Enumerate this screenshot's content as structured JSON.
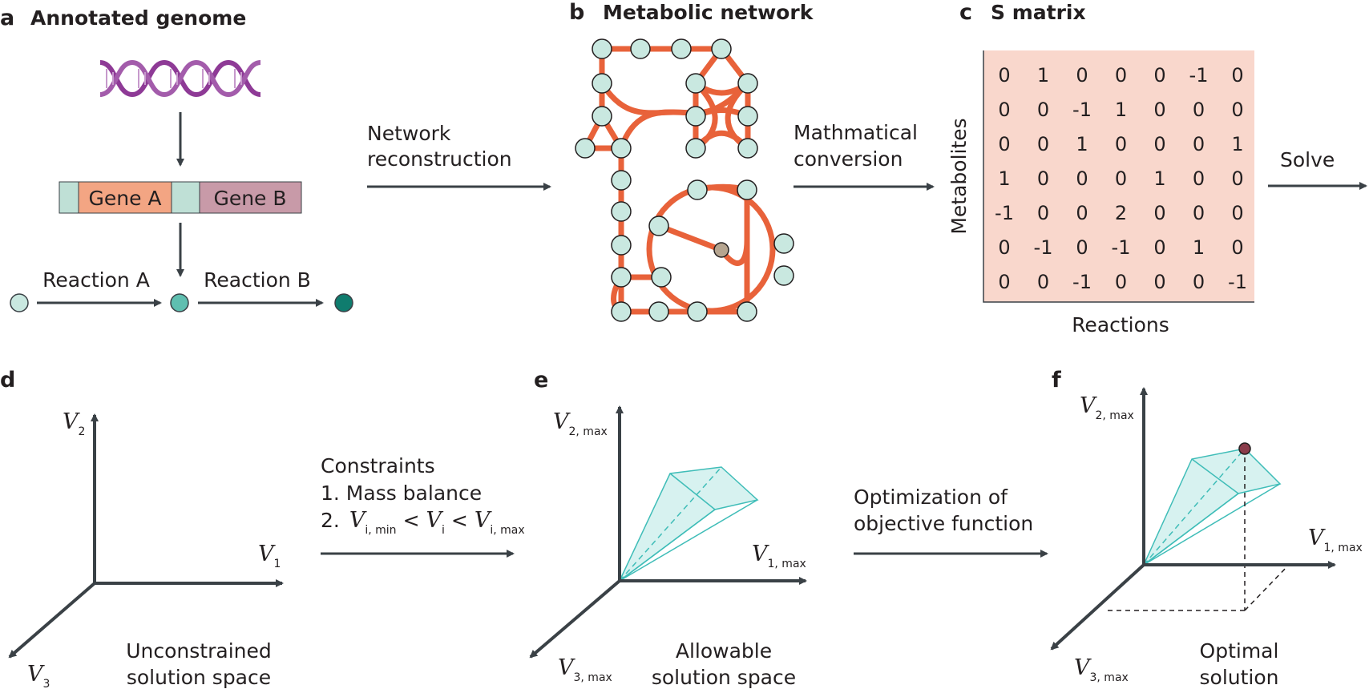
{
  "colors": {
    "dark": "#3a4146",
    "network": "#e8623a",
    "node": "#c9e8e0",
    "node_mid": "#5fbfb0",
    "node_dark": "#0f7c6e",
    "gene_a": "#f3a583",
    "gene_b": "#c89aa8",
    "gene_sep": "#bfe0d6",
    "matrix_bg": "#f9d7cc",
    "cone": "#3fbdb8",
    "optimum": "#8a3b4a",
    "dna": "#8e3a96"
  },
  "panel_a": {
    "letter": "a",
    "title": "Annotated genome",
    "gene_a": "Gene A",
    "gene_b": "Gene B",
    "reaction_a": "Reaction A",
    "reaction_b": "Reaction B"
  },
  "arrow_ab": {
    "line1": "Network",
    "line2": "reconstruction"
  },
  "panel_b": {
    "letter": "b",
    "title": "Metabolic network"
  },
  "arrow_bc": {
    "line1": "Mathmatical",
    "line2": "conversion"
  },
  "panel_c": {
    "letter": "c",
    "title": "S matrix",
    "row_label": "Metabolites",
    "col_label": "Reactions",
    "matrix": [
      [
        "0",
        "1",
        "0",
        "0",
        "0",
        "-1",
        "0"
      ],
      [
        "0",
        "0",
        "-1",
        "1",
        "0",
        "0",
        "0"
      ],
      [
        "0",
        "0",
        "1",
        "0",
        "0",
        "0",
        "1"
      ],
      [
        "1",
        "0",
        "0",
        "0",
        "1",
        "0",
        "0"
      ],
      [
        "-1",
        "0",
        "0",
        "2",
        "0",
        "0",
        "0"
      ],
      [
        "0",
        "-1",
        "0",
        "-1",
        "0",
        "1",
        "0"
      ],
      [
        "0",
        "0",
        "-1",
        "0",
        "0",
        "0",
        "-1"
      ]
    ]
  },
  "arrow_c_out": {
    "label": "Solve"
  },
  "panel_d": {
    "letter": "d",
    "axis_v2": "V",
    "axis_v2_sub": "2",
    "axis_v1": "V",
    "axis_v1_sub": "1",
    "axis_v3": "V",
    "axis_v3_sub": "3",
    "caption1": "Unconstrained",
    "caption2": "solution space"
  },
  "arrow_de": {
    "title": "Constraints",
    "item1": "1.  Mass balance",
    "item2_num": "2.",
    "v": "V",
    "sub_min": "i, min",
    "lt": "<",
    "sub_i": "i",
    "sub_max": "i, max"
  },
  "panel_e": {
    "letter": "e",
    "axis_v2": "V",
    "axis_v2_sub": "2, max",
    "axis_v1": "V",
    "axis_v1_sub": "1, max",
    "axis_v3": "V",
    "axis_v3_sub": "3, max",
    "caption1": "Allowable",
    "caption2": "solution space"
  },
  "arrow_ef": {
    "line1": "Optimization of",
    "line2": "objective function"
  },
  "panel_f": {
    "letter": "f",
    "axis_v2": "V",
    "axis_v2_sub": "2, max",
    "axis_v1": "V",
    "axis_v1_sub": "1, max",
    "axis_v3": "V",
    "axis_v3_sub": "3, max",
    "caption1": "Optimal",
    "caption2": "solution"
  }
}
